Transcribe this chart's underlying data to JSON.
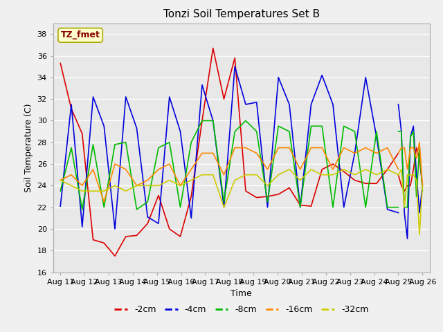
{
  "title": "Tonzi Soil Temperatures Set B",
  "xlabel": "Time",
  "ylabel": "Soil Temperature (C)",
  "annotation": "TZ_fmet",
  "annotation_color": "#8B0000",
  "annotation_bg": "#FFFFCC",
  "annotation_edge": "#AAAA00",
  "ylim": [
    16,
    39
  ],
  "yticks": [
    16,
    18,
    20,
    22,
    24,
    26,
    28,
    30,
    32,
    34,
    36,
    38
  ],
  "bg_color": "#E8E8E8",
  "fig_color": "#F0F0F0",
  "x_labels": [
    "Aug 11",
    "Aug 12",
    "Aug 13",
    "Aug 14",
    "Aug 15",
    "Aug 16",
    "Aug 17",
    "Aug 18",
    "Aug 19",
    "Aug 20",
    "Aug 21",
    "Aug 22",
    "Aug 23",
    "Aug 24",
    "Aug 25",
    "Aug 26"
  ],
  "colors": {
    "-2cm": "#DD0000",
    "-4cm": "#0000DD",
    "-8cm": "#00BB00",
    "-16cm": "#FF8800",
    "-32cm": "#CCCC00"
  },
  "series": {
    "-2cm": [
      35.3,
      31.1,
      28.8,
      19.0,
      18.7,
      17.5,
      19.3,
      19.4,
      20.5,
      23.1,
      20.0,
      19.3,
      23.0,
      30.0,
      36.7,
      32.0,
      35.8,
      23.5,
      22.9,
      23.0,
      23.2,
      23.8,
      22.2,
      22.1,
      25.5,
      26.0,
      25.3,
      24.5,
      24.2,
      24.2,
      25.5,
      27.0
    ],
    "-4cm": [
      22.1,
      31.5,
      20.2,
      32.2,
      29.5,
      20.0,
      32.2,
      29.3,
      21.1,
      20.5,
      32.2,
      29.0,
      21.0,
      33.3,
      30.0,
      22.0,
      35.0,
      31.5,
      31.7,
      22.0,
      34.0,
      31.5,
      22.0,
      31.5,
      34.2,
      31.5,
      22.0,
      27.0,
      34.0,
      28.5,
      21.8,
      21.5
    ],
    "-8cm": [
      23.5,
      27.5,
      21.8,
      27.8,
      22.0,
      27.8,
      28.0,
      21.8,
      22.5,
      27.5,
      28.0,
      22.0,
      28.0,
      30.0,
      30.0,
      22.5,
      29.0,
      30.0,
      29.0,
      22.5,
      29.5,
      29.0,
      22.0,
      29.5,
      29.5,
      22.0,
      29.5,
      29.0,
      22.0,
      29.0,
      22.0,
      22.0
    ],
    "-16cm": [
      24.5,
      25.0,
      24.0,
      25.5,
      22.5,
      26.0,
      25.5,
      24.0,
      24.5,
      25.5,
      26.0,
      24.0,
      25.5,
      27.0,
      27.0,
      25.0,
      27.5,
      27.5,
      27.0,
      25.5,
      27.5,
      27.5,
      25.5,
      27.5,
      27.5,
      25.5,
      27.5,
      27.0,
      27.5,
      27.0,
      27.5,
      25.5
    ],
    "-32cm": [
      24.5,
      24.0,
      23.5,
      23.5,
      23.5,
      24.0,
      23.5,
      24.0,
      24.0,
      24.0,
      24.5,
      24.0,
      24.5,
      25.0,
      25.0,
      22.0,
      24.5,
      25.0,
      25.0,
      24.0,
      25.0,
      25.5,
      24.5,
      25.5,
      25.0,
      25.0,
      25.5,
      25.0,
      25.5,
      25.0,
      25.5,
      25.0
    ]
  },
  "series2": {
    "-2cm": [
      25.0,
      24.0,
      23.5,
      24.0,
      24.0,
      25.5,
      27.5,
      26.5,
      24.0
    ],
    "-4cm": [
      31.5,
      29.0,
      21.5,
      19.1,
      28.5,
      29.5,
      25.0,
      21.5,
      24.0
    ],
    "-8cm": [
      29.0,
      29.0,
      22.0,
      22.0,
      28.5,
      29.0,
      23.0,
      27.5,
      23.5
    ],
    "-16cm": [
      27.0,
      27.5,
      27.5,
      25.5,
      27.5,
      27.5,
      26.5,
      28.0,
      24.0
    ],
    "-32cm": [
      25.0,
      25.5,
      22.0,
      25.0,
      25.0,
      25.0,
      24.5,
      19.5,
      24.0
    ]
  }
}
